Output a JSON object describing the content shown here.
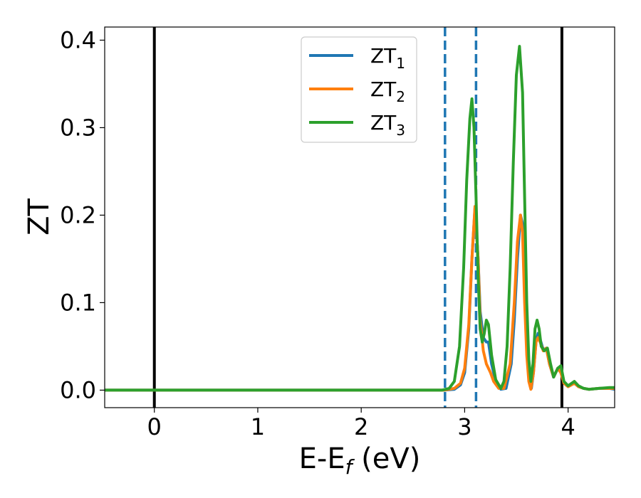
{
  "chart_data": {
    "type": "line",
    "xlabel": {
      "main": "E-E",
      "sub": "f",
      "tail": " (eV)"
    },
    "ylabel": "ZT",
    "xlim": [
      -0.48,
      4.45
    ],
    "ylim": [
      -0.02,
      0.415
    ],
    "xticks": [
      {
        "value": 0,
        "label": "0"
      },
      {
        "value": 1,
        "label": "1"
      },
      {
        "value": 2,
        "label": "2"
      },
      {
        "value": 3,
        "label": "3"
      },
      {
        "value": 4,
        "label": "4"
      }
    ],
    "yticks": [
      {
        "value": 0.0,
        "label": "0.0"
      },
      {
        "value": 0.1,
        "label": "0.1"
      },
      {
        "value": 0.2,
        "label": "0.2"
      },
      {
        "value": 0.3,
        "label": "0.3"
      },
      {
        "value": 0.4,
        "label": "0.4"
      }
    ],
    "grid": false,
    "legend_position": "top-center",
    "vlines": [
      {
        "x": 0.0,
        "style": "solid",
        "color": "#000000"
      },
      {
        "x": 3.94,
        "style": "solid",
        "color": "#000000"
      },
      {
        "x": 2.81,
        "style": "dashed",
        "color": "#1f77b4"
      },
      {
        "x": 3.11,
        "style": "dashed",
        "color": "#1f77b4"
      }
    ],
    "series": [
      {
        "name": "ZT",
        "sub": "1",
        "color": "#1f77b4",
        "points": [
          [
            -0.48,
            0
          ],
          [
            2.8,
            0
          ],
          [
            2.9,
            0.001
          ],
          [
            2.96,
            0.006
          ],
          [
            3.0,
            0.02
          ],
          [
            3.04,
            0.07
          ],
          [
            3.07,
            0.15
          ],
          [
            3.1,
            0.208
          ],
          [
            3.13,
            0.15
          ],
          [
            3.15,
            0.09
          ],
          [
            3.18,
            0.06
          ],
          [
            3.21,
            0.055
          ],
          [
            3.23,
            0.055
          ],
          [
            3.26,
            0.03
          ],
          [
            3.3,
            0.01
          ],
          [
            3.35,
            0.001
          ],
          [
            3.4,
            0.002
          ],
          [
            3.45,
            0.03
          ],
          [
            3.48,
            0.08
          ],
          [
            3.51,
            0.15
          ],
          [
            3.54,
            0.2
          ],
          [
            3.56,
            0.19
          ],
          [
            3.58,
            0.12
          ],
          [
            3.6,
            0.05
          ],
          [
            3.62,
            0.015
          ],
          [
            3.645,
            0.002
          ],
          [
            3.665,
            0.02
          ],
          [
            3.69,
            0.055
          ],
          [
            3.71,
            0.065
          ],
          [
            3.73,
            0.058
          ],
          [
            3.76,
            0.046
          ],
          [
            3.79,
            0.048
          ],
          [
            3.82,
            0.03
          ],
          [
            3.86,
            0.015
          ],
          [
            3.9,
            0.025
          ],
          [
            3.93,
            0.02
          ],
          [
            3.96,
            0.008
          ],
          [
            4.0,
            0.004
          ],
          [
            4.06,
            0.008
          ],
          [
            4.1,
            0.004
          ],
          [
            4.15,
            0.002
          ],
          [
            4.2,
            0.001
          ],
          [
            4.3,
            0.002
          ],
          [
            4.4,
            0.002
          ],
          [
            4.45,
            0.001
          ]
        ]
      },
      {
        "name": "ZT",
        "sub": "2",
        "color": "#ff7f0e",
        "points": [
          [
            -0.48,
            0
          ],
          [
            2.8,
            0
          ],
          [
            2.9,
            0.002
          ],
          [
            2.96,
            0.008
          ],
          [
            3.0,
            0.025
          ],
          [
            3.04,
            0.075
          ],
          [
            3.07,
            0.15
          ],
          [
            3.1,
            0.21
          ],
          [
            3.13,
            0.15
          ],
          [
            3.15,
            0.08
          ],
          [
            3.18,
            0.045
          ],
          [
            3.21,
            0.03
          ],
          [
            3.25,
            0.02
          ],
          [
            3.28,
            0.01
          ],
          [
            3.33,
            0.002
          ],
          [
            3.38,
            0.002
          ],
          [
            3.44,
            0.03
          ],
          [
            3.48,
            0.1
          ],
          [
            3.51,
            0.17
          ],
          [
            3.54,
            0.2
          ],
          [
            3.56,
            0.18
          ],
          [
            3.58,
            0.1
          ],
          [
            3.6,
            0.04
          ],
          [
            3.62,
            0.01
          ],
          [
            3.64,
            0.001
          ],
          [
            3.665,
            0.02
          ],
          [
            3.69,
            0.055
          ],
          [
            3.71,
            0.06
          ],
          [
            3.73,
            0.055
          ],
          [
            3.76,
            0.045
          ],
          [
            3.79,
            0.048
          ],
          [
            3.82,
            0.03
          ],
          [
            3.86,
            0.015
          ],
          [
            3.9,
            0.025
          ],
          [
            3.93,
            0.02
          ],
          [
            3.96,
            0.008
          ],
          [
            4.0,
            0.004
          ],
          [
            4.06,
            0.008
          ],
          [
            4.1,
            0.004
          ],
          [
            4.15,
            0.002
          ],
          [
            4.2,
            0.001
          ],
          [
            4.3,
            0.002
          ],
          [
            4.4,
            0.002
          ],
          [
            4.45,
            0.002
          ]
        ]
      },
      {
        "name": "ZT",
        "sub": "3",
        "color": "#2ca02c",
        "points": [
          [
            -0.48,
            0
          ],
          [
            2.78,
            0
          ],
          [
            2.85,
            0.002
          ],
          [
            2.9,
            0.01
          ],
          [
            2.95,
            0.05
          ],
          [
            2.99,
            0.14
          ],
          [
            3.02,
            0.24
          ],
          [
            3.05,
            0.31
          ],
          [
            3.07,
            0.333
          ],
          [
            3.09,
            0.3
          ],
          [
            3.11,
            0.22
          ],
          [
            3.13,
            0.13
          ],
          [
            3.15,
            0.07
          ],
          [
            3.17,
            0.055
          ],
          [
            3.19,
            0.065
          ],
          [
            3.21,
            0.08
          ],
          [
            3.23,
            0.075
          ],
          [
            3.26,
            0.04
          ],
          [
            3.3,
            0.012
          ],
          [
            3.35,
            0.002
          ],
          [
            3.38,
            0.01
          ],
          [
            3.41,
            0.05
          ],
          [
            3.44,
            0.14
          ],
          [
            3.47,
            0.26
          ],
          [
            3.5,
            0.36
          ],
          [
            3.53,
            0.393
          ],
          [
            3.56,
            0.34
          ],
          [
            3.58,
            0.22
          ],
          [
            3.6,
            0.1
          ],
          [
            3.62,
            0.035
          ],
          [
            3.64,
            0.01
          ],
          [
            3.66,
            0.03
          ],
          [
            3.68,
            0.07
          ],
          [
            3.7,
            0.08
          ],
          [
            3.72,
            0.07
          ],
          [
            3.74,
            0.05
          ],
          [
            3.77,
            0.045
          ],
          [
            3.8,
            0.048
          ],
          [
            3.83,
            0.03
          ],
          [
            3.86,
            0.015
          ],
          [
            3.9,
            0.025
          ],
          [
            3.93,
            0.028
          ],
          [
            3.96,
            0.01
          ],
          [
            4.0,
            0.005
          ],
          [
            4.06,
            0.01
          ],
          [
            4.1,
            0.005
          ],
          [
            4.15,
            0.002
          ],
          [
            4.2,
            0.001
          ],
          [
            4.3,
            0.002
          ],
          [
            4.4,
            0.003
          ],
          [
            4.45,
            0.003
          ]
        ]
      }
    ]
  }
}
